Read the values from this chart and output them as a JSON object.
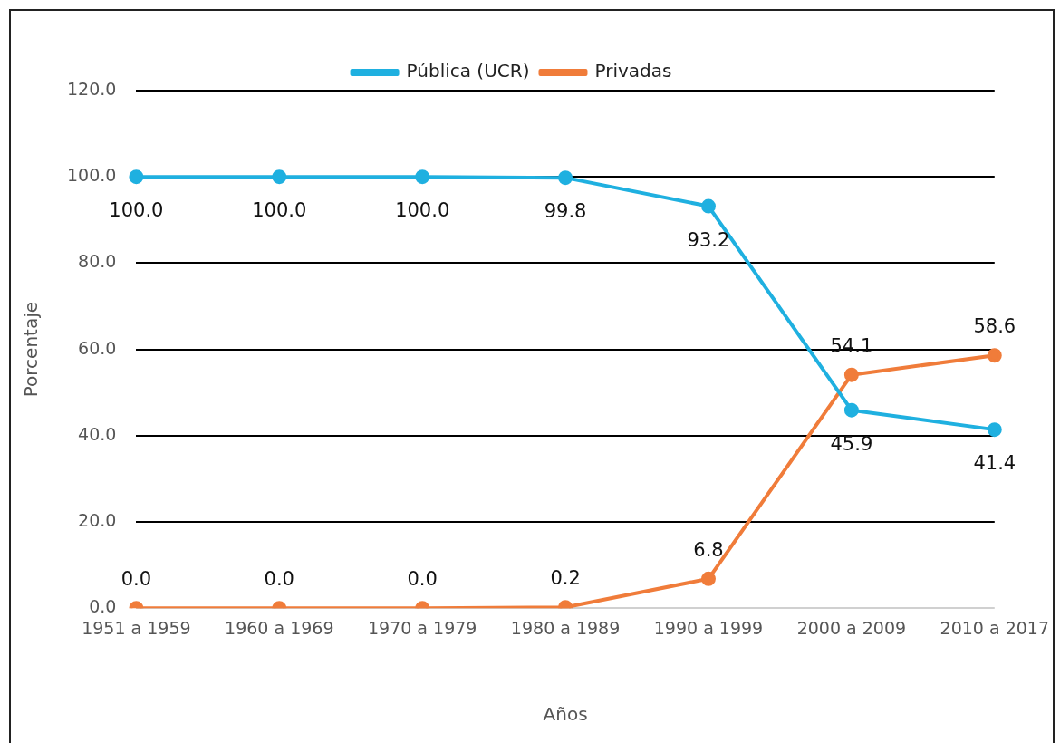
{
  "chart_data": {
    "type": "line",
    "xlabel": "Años",
    "ylabel": "Porcentaje",
    "categories": [
      "1951 a 1959",
      "1960 a 1969",
      "1970 a 1979",
      "1980 a 1989",
      "1990 a 1999",
      "2000 a 2009",
      "2010 a 2017"
    ],
    "series": [
      {
        "name": "Pública (UCR)",
        "color": "#1fb0e0",
        "values": [
          100.0,
          100.0,
          100.0,
          99.8,
          93.2,
          45.9,
          41.4
        ],
        "value_labels": [
          "100.0",
          "100.0",
          "100.0",
          "99.8",
          "93.2",
          "45.9",
          "41.4"
        ]
      },
      {
        "name": "Privadas",
        "color": "#f07c3a",
        "values": [
          0.0,
          0.0,
          0.0,
          0.2,
          6.8,
          54.1,
          58.6
        ],
        "value_labels": [
          "0.0",
          "0.0",
          "0.0",
          "0.2",
          "6.8",
          "54.1",
          "58.6"
        ]
      }
    ],
    "ylim": [
      0,
      120
    ],
    "yticks": [
      {
        "value": 0,
        "label": "0.0"
      },
      {
        "value": 20,
        "label": "20.0"
      },
      {
        "value": 40,
        "label": "40.0"
      },
      {
        "value": 60,
        "label": "60.0"
      },
      {
        "value": 80,
        "label": "80.0"
      },
      {
        "value": 100,
        "label": "100.0"
      },
      {
        "value": 120,
        "label": "120.0"
      }
    ],
    "grid": "y",
    "legend": "top",
    "marker": "circle",
    "line_style": "solid"
  }
}
